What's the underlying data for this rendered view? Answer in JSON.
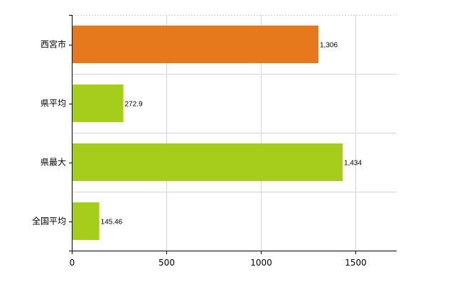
{
  "chart_data": {
    "type": "bar",
    "orientation": "horizontal",
    "title": "",
    "xlabel": "",
    "ylabel": "",
    "categories": [
      "西宮市",
      "県平均",
      "県最大",
      "全国平均"
    ],
    "values": [
      1306,
      272.9,
      1434,
      145.46
    ],
    "value_labels": [
      "1,306",
      "272.9",
      "1,434",
      "145.46"
    ],
    "colors": [
      "#e5791c",
      "#a6cc1c",
      "#a6cc1c",
      "#a6cc1c"
    ],
    "xlim": [
      0,
      1720
    ],
    "x_ticks": [
      0,
      500,
      1000,
      1500
    ],
    "x_tick_labels": [
      "0",
      "500",
      "1000",
      "1500"
    ],
    "grid": true,
    "legend": "none"
  }
}
